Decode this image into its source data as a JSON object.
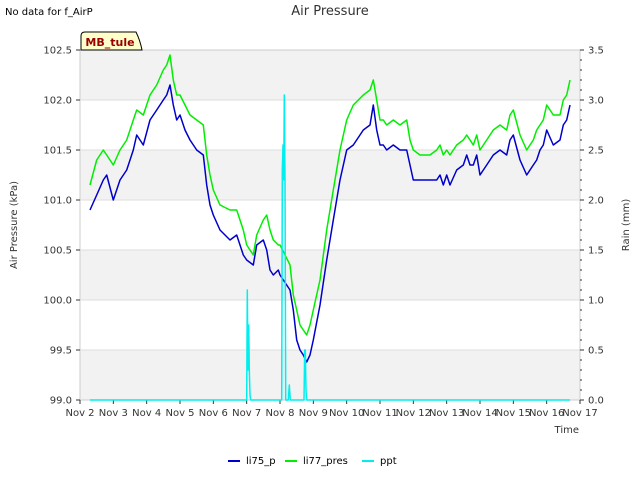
{
  "note": "No data for f_AirP",
  "chart_data": {
    "type": "line",
    "title": "Air Pressure",
    "xlabel": "Time",
    "ylabel": "Air Pressure (kPa)",
    "y2label": "Rain (mm)",
    "xlim": [
      2,
      17
    ],
    "ylim": [
      99.0,
      102.5
    ],
    "y2lim": [
      0.0,
      3.5
    ],
    "xticks": [
      2,
      3,
      4,
      5,
      6,
      7,
      8,
      9,
      10,
      11,
      12,
      13,
      14,
      15,
      16,
      17
    ],
    "xtick_labels": [
      "Nov 2",
      "Nov 3",
      "Nov 4",
      "Nov 5",
      "Nov 6",
      "Nov 7",
      "Nov 8",
      "Nov 9",
      "Nov 10",
      "Nov 11",
      "Nov 12",
      "Nov 13",
      "Nov 14",
      "Nov 15",
      "Nov 16",
      "Nov 17"
    ],
    "yticks": [
      99.0,
      99.5,
      100.0,
      100.5,
      101.0,
      101.5,
      102.0,
      102.5
    ],
    "ytick_labels": [
      "99.0",
      "99.5",
      "100.0",
      "100.5",
      "101.0",
      "101.5",
      "102.0",
      "102.5"
    ],
    "y2ticks": [
      0.0,
      0.5,
      1.0,
      1.5,
      2.0,
      2.5,
      3.0,
      3.5
    ],
    "y2tick_labels": [
      "0.0",
      "0.5",
      "1.0",
      "1.5",
      "2.0",
      "2.5",
      "3.0",
      "3.5"
    ],
    "station_label": "MB_tule",
    "legend_position": "bottom-center",
    "series": [
      {
        "name": "li75_p",
        "color": "#0000cc",
        "axis": "left",
        "x": [
          2.3,
          2.5,
          2.7,
          2.8,
          3.0,
          3.2,
          3.4,
          3.6,
          3.7,
          3.9,
          4.1,
          4.3,
          4.5,
          4.6,
          4.7,
          4.8,
          4.9,
          5.0,
          5.15,
          5.3,
          5.5,
          5.7,
          5.8,
          5.9,
          6.0,
          6.2,
          6.5,
          6.7,
          6.9,
          7.0,
          7.2,
          7.3,
          7.5,
          7.6,
          7.7,
          7.8,
          7.95,
          8.0,
          8.3,
          8.4,
          8.5,
          8.6,
          8.7,
          8.8,
          8.9,
          9.0,
          9.2,
          9.4,
          9.6,
          9.8,
          10.0,
          10.2,
          10.5,
          10.7,
          10.8,
          10.9,
          11.0,
          11.1,
          11.2,
          11.4,
          11.6,
          11.8,
          11.9,
          12.0,
          12.2,
          12.4,
          12.5,
          12.7,
          12.8,
          12.9,
          13.0,
          13.1,
          13.3,
          13.5,
          13.6,
          13.7,
          13.8,
          13.9,
          14.0,
          14.2,
          14.4,
          14.6,
          14.8,
          14.9,
          15.0,
          15.2,
          15.4,
          15.5,
          15.6,
          15.7,
          15.8,
          15.9,
          16.0,
          16.2,
          16.4,
          16.5,
          16.6,
          16.7
        ],
        "y": [
          100.9,
          101.05,
          101.2,
          101.25,
          101.0,
          101.2,
          101.3,
          101.5,
          101.65,
          101.55,
          101.8,
          101.9,
          102.0,
          102.05,
          102.15,
          101.95,
          101.8,
          101.85,
          101.7,
          101.6,
          101.5,
          101.45,
          101.15,
          100.95,
          100.85,
          100.7,
          100.6,
          100.65,
          100.45,
          100.4,
          100.35,
          100.55,
          100.6,
          100.5,
          100.3,
          100.25,
          100.3,
          100.25,
          100.1,
          99.9,
          99.6,
          99.5,
          99.45,
          99.38,
          99.45,
          99.6,
          99.95,
          100.4,
          100.8,
          101.2,
          101.5,
          101.55,
          101.7,
          101.75,
          101.95,
          101.7,
          101.55,
          101.55,
          101.5,
          101.55,
          101.5,
          101.5,
          101.35,
          101.2,
          101.2,
          101.2,
          101.2,
          101.2,
          101.25,
          101.15,
          101.25,
          101.15,
          101.3,
          101.35,
          101.45,
          101.35,
          101.35,
          101.45,
          101.25,
          101.35,
          101.45,
          101.5,
          101.45,
          101.6,
          101.65,
          101.4,
          101.25,
          101.3,
          101.35,
          101.4,
          101.5,
          101.55,
          101.7,
          101.55,
          101.6,
          101.75,
          101.8,
          101.95
        ]
      },
      {
        "name": "li77_pres",
        "color": "#00ee00",
        "axis": "left",
        "x": [
          2.3,
          2.5,
          2.7,
          2.8,
          3.0,
          3.2,
          3.4,
          3.6,
          3.7,
          3.9,
          4.1,
          4.3,
          4.5,
          4.6,
          4.7,
          4.8,
          4.9,
          5.0,
          5.15,
          5.3,
          5.5,
          5.7,
          5.8,
          5.9,
          6.0,
          6.2,
          6.5,
          6.7,
          6.9,
          7.0,
          7.2,
          7.3,
          7.5,
          7.6,
          7.7,
          7.8,
          7.95,
          8.0,
          8.3,
          8.4,
          8.5,
          8.6,
          8.7,
          8.8,
          8.9,
          9.0,
          9.2,
          9.4,
          9.6,
          9.8,
          10.0,
          10.2,
          10.5,
          10.7,
          10.8,
          10.9,
          11.0,
          11.1,
          11.2,
          11.4,
          11.6,
          11.8,
          11.9,
          12.0,
          12.2,
          12.4,
          12.5,
          12.7,
          12.8,
          12.9,
          13.0,
          13.1,
          13.3,
          13.5,
          13.6,
          13.7,
          13.8,
          13.9,
          14.0,
          14.2,
          14.4,
          14.6,
          14.8,
          14.9,
          15.0,
          15.2,
          15.4,
          15.5,
          15.6,
          15.7,
          15.8,
          15.9,
          16.0,
          16.2,
          16.4,
          16.5,
          16.6,
          16.7
        ],
        "y": [
          101.15,
          101.4,
          101.5,
          101.45,
          101.35,
          101.5,
          101.6,
          101.8,
          101.9,
          101.85,
          102.05,
          102.15,
          102.3,
          102.35,
          102.45,
          102.2,
          102.05,
          102.05,
          101.95,
          101.85,
          101.8,
          101.75,
          101.45,
          101.25,
          101.1,
          100.95,
          100.9,
          100.9,
          100.7,
          100.55,
          100.45,
          100.65,
          100.8,
          100.85,
          100.7,
          100.6,
          100.55,
          100.55,
          100.35,
          100.05,
          99.9,
          99.75,
          99.7,
          99.65,
          99.75,
          99.9,
          100.2,
          100.7,
          101.1,
          101.5,
          101.8,
          101.95,
          102.05,
          102.1,
          102.2,
          102.0,
          101.8,
          101.8,
          101.75,
          101.8,
          101.75,
          101.8,
          101.6,
          101.5,
          101.45,
          101.45,
          101.45,
          101.5,
          101.55,
          101.45,
          101.5,
          101.45,
          101.55,
          101.6,
          101.65,
          101.6,
          101.55,
          101.65,
          101.5,
          101.6,
          101.7,
          101.75,
          101.7,
          101.85,
          101.9,
          101.65,
          101.5,
          101.55,
          101.6,
          101.7,
          101.75,
          101.8,
          101.95,
          101.85,
          101.85,
          102.0,
          102.05,
          102.2
        ]
      },
      {
        "name": "ppt",
        "color": "#00eeee",
        "axis": "right",
        "x": [
          2.3,
          7.0,
          7.02,
          7.04,
          7.06,
          7.08,
          7.1,
          7.12,
          7.14,
          8.0,
          8.05,
          8.07,
          8.09,
          8.11,
          8.13,
          8.15,
          8.17,
          8.2,
          8.25,
          8.28,
          8.31,
          8.5,
          8.72,
          8.74,
          8.76,
          8.78,
          8.8,
          16.7
        ],
        "y": [
          0.0,
          0.0,
          1.1,
          0.3,
          0.75,
          0.3,
          0.05,
          0.0,
          0.0,
          0.0,
          0.0,
          2.3,
          2.55,
          2.2,
          3.05,
          2.2,
          0.0,
          0.0,
          0.0,
          0.15,
          0.0,
          0.0,
          0.0,
          0.5,
          0.5,
          0.1,
          0.0,
          0.0
        ]
      }
    ]
  }
}
